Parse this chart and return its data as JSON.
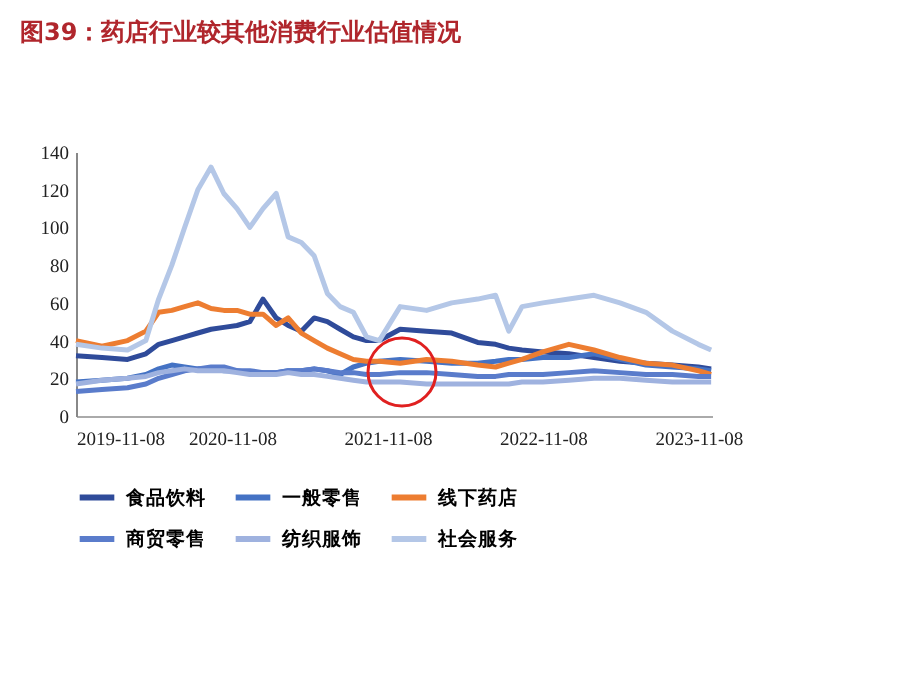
{
  "chart_data": {
    "type": "line",
    "title": "图39：药店行业较其他消费行业估值情况",
    "x": [
      "2019-11-08",
      "2020-01-08",
      "2020-03-08",
      "2020-04-20",
      "2020-05-20",
      "2020-06-20",
      "2020-07-20",
      "2020-08-20",
      "2020-09-20",
      "2020-10-20",
      "2020-11-20",
      "2020-12-20",
      "2021-01-20",
      "2021-02-20",
      "2021-03-20",
      "2021-04-20",
      "2021-05-20",
      "2021-06-20",
      "2021-07-20",
      "2021-08-20",
      "2021-09-20",
      "2021-10-20",
      "2021-12-08",
      "2022-02-08",
      "2022-04-08",
      "2022-06-08",
      "2022-07-20",
      "2022-08-20",
      "2022-09-20",
      "2022-11-08",
      "2023-01-08",
      "2023-03-08",
      "2023-05-08",
      "2023-07-08",
      "2023-09-08",
      "2023-11-08",
      "2023-12-08"
    ],
    "series": [
      {
        "name": "食品饮料",
        "color": "#2f4b9a",
        "values": [
          32,
          31,
          30,
          33,
          38,
          40,
          42,
          44,
          46,
          47,
          48,
          50,
          62,
          52,
          48,
          45,
          52,
          50,
          46,
          42,
          40,
          40,
          46,
          45,
          44,
          39,
          38,
          36,
          35,
          34,
          33,
          31,
          29,
          28,
          27,
          26,
          25
        ]
      },
      {
        "name": "一般零售",
        "color": "#4472c4",
        "values": [
          18,
          19,
          20,
          22,
          25,
          27,
          26,
          25,
          25,
          24,
          24,
          23,
          23,
          23,
          24,
          24,
          25,
          24,
          22,
          26,
          28,
          29,
          30,
          29,
          28,
          28,
          29,
          30,
          30,
          31,
          31,
          33,
          30,
          27,
          26,
          25,
          24
        ]
      },
      {
        "name": "线下药店",
        "color": "#ed7d31",
        "values": [
          40,
          37,
          40,
          45,
          55,
          56,
          58,
          60,
          57,
          56,
          56,
          54,
          54,
          48,
          52,
          44,
          40,
          36,
          33,
          30,
          29,
          29,
          28,
          30,
          29,
          27,
          26,
          28,
          30,
          34,
          38,
          35,
          31,
          28,
          27,
          24,
          22
        ]
      },
      {
        "name": "商贸零售",
        "color": "#5a7ccb",
        "values": [
          13,
          14,
          15,
          17,
          20,
          22,
          24,
          25,
          26,
          26,
          24,
          24,
          23,
          23,
          24,
          24,
          25,
          24,
          23,
          23,
          22,
          22,
          23,
          23,
          22,
          21,
          21,
          22,
          22,
          22,
          23,
          24,
          23,
          22,
          22,
          21,
          21
        ]
      },
      {
        "name": "纺织服饰",
        "color": "#9fb2df",
        "values": [
          17,
          19,
          20,
          21,
          23,
          24,
          25,
          24,
          24,
          24,
          23,
          22,
          22,
          22,
          23,
          22,
          22,
          21,
          20,
          19,
          18,
          18,
          18,
          17,
          17,
          17,
          17,
          17,
          18,
          18,
          19,
          20,
          20,
          19,
          18,
          18,
          18
        ]
      },
      {
        "name": "社会服务",
        "color": "#b4c7e7",
        "values": [
          38,
          36,
          35,
          40,
          62,
          80,
          100,
          120,
          132,
          118,
          110,
          100,
          110,
          118,
          95,
          92,
          85,
          65,
          58,
          55,
          42,
          40,
          58,
          56,
          60,
          62,
          64,
          45,
          58,
          60,
          62,
          64,
          60,
          55,
          45,
          38,
          35
        ]
      }
    ],
    "xlim": [
      "2019-11-08",
      "2023-12-10"
    ],
    "xticks": [
      "2019-11-08",
      "2020-11-08",
      "2021-11-08",
      "2022-11-08",
      "2023-11-08"
    ],
    "ylim": [
      0,
      140
    ],
    "yticks": [
      0,
      20,
      40,
      60,
      80,
      100,
      120,
      140
    ],
    "grid": false,
    "legend": "bottom",
    "marker": "none",
    "line_style": "solid"
  }
}
